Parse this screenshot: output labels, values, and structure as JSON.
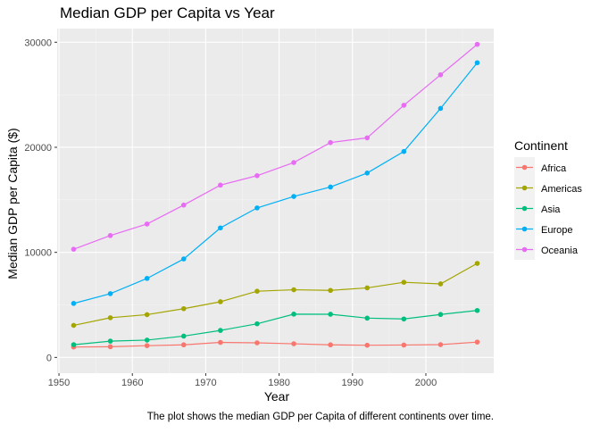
{
  "chart_data": {
    "type": "line",
    "title": "Median GDP per Capita vs Year",
    "xlabel": "Year",
    "ylabel": "Median GDP per Capita ($)",
    "caption": "The plot shows the median GDP per Capita of different continents over time.",
    "legend_title": "Continent",
    "legend_position": "right",
    "grid": true,
    "xlim": [
      1949.75,
      2009.25
    ],
    "ylim": [
      -1500,
      31300
    ],
    "x_ticks": [
      1950,
      1960,
      1970,
      1980,
      1990,
      2000
    ],
    "y_ticks": [
      0,
      10000,
      20000,
      30000
    ],
    "x_tick_labels": [
      "1950",
      "1960",
      "1970",
      "1980",
      "1990",
      "2000"
    ],
    "y_tick_labels": [
      "0",
      "10000",
      "20000",
      "30000"
    ],
    "x": [
      1952,
      1957,
      1962,
      1967,
      1972,
      1977,
      1982,
      1987,
      1992,
      1997,
      2002,
      2007
    ],
    "series": [
      {
        "name": "Africa",
        "color": "#F8766D",
        "values": [
          990,
          1020,
          1120,
          1200,
          1430,
          1390,
          1300,
          1200,
          1160,
          1180,
          1220,
          1460
        ]
      },
      {
        "name": "Americas",
        "color": "#A3A500",
        "values": [
          3050,
          3780,
          4070,
          4640,
          5300,
          6300,
          6440,
          6380,
          6620,
          7150,
          7000,
          8950
        ]
      },
      {
        "name": "Asia",
        "color": "#00BF7D",
        "values": [
          1210,
          1550,
          1650,
          2030,
          2570,
          3200,
          4120,
          4110,
          3740,
          3660,
          4090,
          4470
        ]
      },
      {
        "name": "Europe",
        "color": "#00B0F6",
        "values": [
          5140,
          6070,
          7520,
          9370,
          12330,
          14230,
          15320,
          16220,
          17550,
          19600,
          23700,
          28050
        ]
      },
      {
        "name": "Oceania",
        "color": "#E76BF3",
        "values": [
          10300,
          11600,
          12700,
          14500,
          16400,
          17300,
          18550,
          20450,
          20900,
          24000,
          26900,
          29800
        ]
      }
    ]
  }
}
